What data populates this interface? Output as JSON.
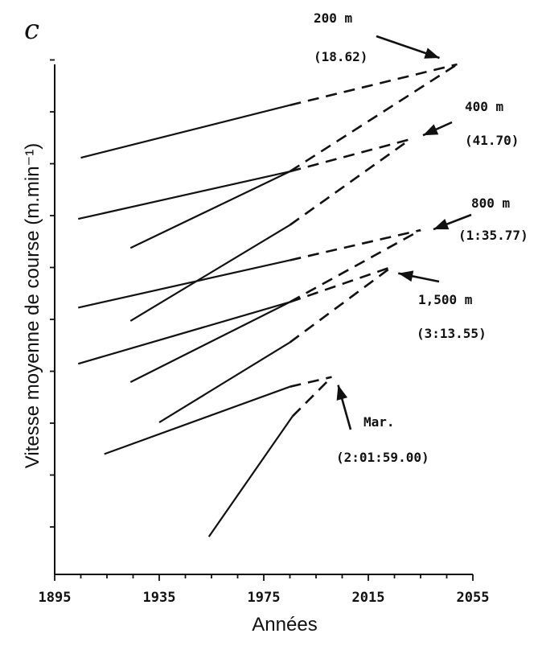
{
  "chart_data": {
    "type": "line",
    "panel_label": "c",
    "xlabel": "Années",
    "ylabel": "Vitesse moyenne de course (m.min⁻¹)",
    "xlim": [
      1895,
      2055
    ],
    "x_ticks": [
      "1895",
      "1935",
      "1975",
      "2015",
      "2055"
    ],
    "y_tick_count": 10,
    "y_tick_labels": [],
    "grid": false,
    "series": [
      {
        "name": "200 m",
        "record": "(18.62)",
        "x": [
          1905,
          1985
        ],
        "y": [
          0.817,
          0.92
        ],
        "projection_x": [
          1985,
          2049
        ],
        "projection_y": [
          0.92,
          1.0
        ]
      },
      {
        "name": "200 m",
        "record": "(18.62)",
        "x": [
          1924,
          1985
        ],
        "y": [
          0.64,
          0.79
        ],
        "projection_x": [
          1985,
          2049
        ],
        "projection_y": [
          0.79,
          1.0
        ]
      },
      {
        "name": "400 m",
        "record": "(41.70)",
        "x": [
          1904,
          1985
        ],
        "y": [
          0.697,
          0.79
        ],
        "projection_x": [
          1985,
          2031
        ],
        "projection_y": [
          0.79,
          0.853
        ]
      },
      {
        "name": "400 m",
        "record": "(41.70)",
        "x": [
          1924,
          1985
        ],
        "y": [
          0.497,
          0.685
        ],
        "projection_x": [
          1985,
          2031
        ],
        "projection_y": [
          0.685,
          0.853
        ]
      },
      {
        "name": "800 m",
        "record": "(1:35.77)",
        "x": [
          1904,
          1985
        ],
        "y": [
          0.523,
          0.616
        ],
        "projection_x": [
          1985,
          2035
        ],
        "projection_y": [
          0.616,
          0.675
        ]
      },
      {
        "name": "800 m",
        "record": "(1:35.77)",
        "x": [
          1924,
          1985
        ],
        "y": [
          0.377,
          0.534
        ],
        "projection_x": [
          1985,
          2035
        ],
        "projection_y": [
          0.534,
          0.675
        ]
      },
      {
        "name": "1,500 m",
        "record": "(3:13.55)",
        "x": [
          1904,
          1985
        ],
        "y": [
          0.413,
          0.534
        ],
        "projection_x": [
          1985,
          2024
        ],
        "projection_y": [
          0.534,
          0.603
        ]
      },
      {
        "name": "1,500 m",
        "record": "(3:13.55)",
        "x": [
          1935,
          1985
        ],
        "y": [
          0.298,
          0.455
        ],
        "projection_x": [
          1985,
          2024
        ],
        "projection_y": [
          0.455,
          0.603
        ]
      },
      {
        "name": "Mar.",
        "record": "(2:01:59.00)",
        "x": [
          1914,
          1985
        ],
        "y": [
          0.236,
          0.368
        ],
        "projection_x": [
          1985,
          2001
        ],
        "projection_y": [
          0.368,
          0.387
        ]
      },
      {
        "name": "Mar.",
        "record": "(2:01:59.00)",
        "x": [
          1954,
          1986
        ],
        "y": [
          0.074,
          0.31
        ],
        "projection_x": [
          1986,
          2001
        ],
        "projection_y": [
          0.31,
          0.387
        ]
      }
    ],
    "annotations": [
      {
        "event": "200 m",
        "record": "(18.62)",
        "points_to_year": 2049,
        "points_to_y": 1.0
      },
      {
        "event": "400 m",
        "record": "(41.70)",
        "points_to_year": 2031,
        "points_to_y": 0.853
      },
      {
        "event": "800 m",
        "record": "(1:35.77)",
        "points_to_year": 2035,
        "points_to_y": 0.675
      },
      {
        "event": "1,500 m",
        "record": "(3:13.55)",
        "points_to_year": 2024,
        "points_to_y": 0.603
      },
      {
        "event": "Mar.",
        "record": "(2:01:59.00)",
        "points_to_year": 2001,
        "points_to_y": 0.387
      }
    ]
  }
}
